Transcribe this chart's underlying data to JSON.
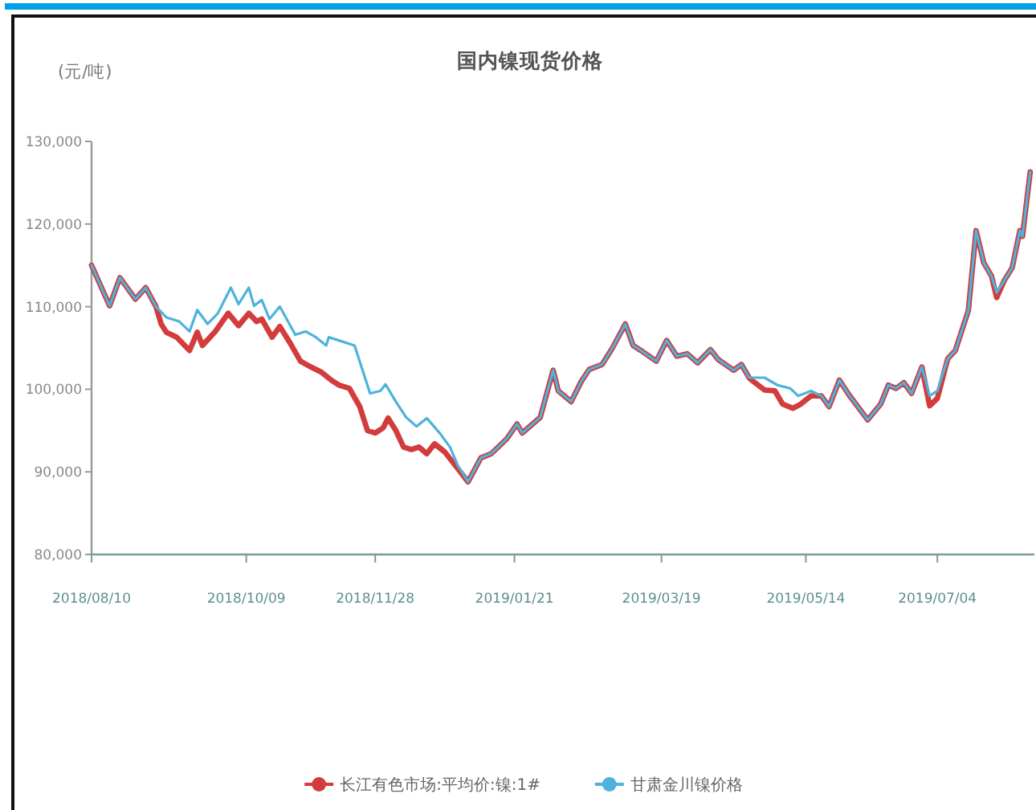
{
  "chart_data": {
    "type": "line",
    "title": "国内镍现货价格",
    "ylabel": "(元/吨)",
    "xlim": [
      "2018-08-10",
      "2019-08-10"
    ],
    "xticks": [
      {
        "value": "2018-08-10",
        "label": "2018/08/10"
      },
      {
        "value": "2018-10-09",
        "label": "2018/10/09"
      },
      {
        "value": "2018-11-28",
        "label": "2018/11/28"
      },
      {
        "value": "2019-01-21",
        "label": "2019/01/21"
      },
      {
        "value": "2019-03-19",
        "label": "2019/03/19"
      },
      {
        "value": "2019-05-14",
        "label": "2019/05/14"
      },
      {
        "value": "2019-07-04",
        "label": "2019/07/04"
      }
    ],
    "ylim": [
      80000,
      130000
    ],
    "yticks": [
      {
        "value": 80000,
        "label": "80,000"
      },
      {
        "value": 90000,
        "label": "90,000"
      },
      {
        "value": 100000,
        "label": "100,000"
      },
      {
        "value": 110000,
        "label": "110,000"
      },
      {
        "value": 120000,
        "label": "120,000"
      },
      {
        "value": 130000,
        "label": "130,000"
      }
    ],
    "legend": "bottom",
    "series": [
      {
        "name": "长江有色市场:平均价:镍:1#",
        "color": "#d23c3c",
        "x": [
          "2018-08-10",
          "2018-08-17",
          "2018-08-21",
          "2018-08-27",
          "2018-08-31",
          "2018-09-04",
          "2018-09-06",
          "2018-09-08",
          "2018-09-12",
          "2018-09-17",
          "2018-09-20",
          "2018-09-22",
          "2018-09-27",
          "2018-10-02",
          "2018-10-06",
          "2018-10-10",
          "2018-10-13",
          "2018-10-15",
          "2018-10-19",
          "2018-10-22",
          "2018-10-26",
          "2018-10-30",
          "2018-11-03",
          "2018-11-07",
          "2018-11-11",
          "2018-11-14",
          "2018-11-18",
          "2018-11-22",
          "2018-11-25",
          "2018-11-28",
          "2018-12-01",
          "2018-12-03",
          "2018-12-06",
          "2018-12-09",
          "2018-12-12",
          "2018-12-15",
          "2018-12-18",
          "2018-12-21",
          "2018-12-25",
          "2018-12-29",
          "2019-01-03",
          "2019-01-08",
          "2019-01-12",
          "2019-01-18",
          "2019-01-22",
          "2019-01-24",
          "2019-01-31",
          "2019-02-05",
          "2019-02-07",
          "2019-02-12",
          "2019-02-16",
          "2019-02-19",
          "2019-02-24",
          "2019-02-28",
          "2019-03-05",
          "2019-03-08",
          "2019-03-11",
          "2019-03-17",
          "2019-03-21",
          "2019-03-25",
          "2019-03-29",
          "2019-04-02",
          "2019-04-07",
          "2019-04-10",
          "2019-04-16",
          "2019-04-19",
          "2019-04-22",
          "2019-04-23",
          "2019-04-28",
          "2019-05-02",
          "2019-05-05",
          "2019-05-09",
          "2019-05-12",
          "2019-05-16",
          "2019-05-20",
          "2019-05-23",
          "2019-05-27",
          "2019-05-31",
          "2019-06-07",
          "2019-06-12",
          "2019-06-15",
          "2019-06-18",
          "2019-06-21",
          "2019-06-24",
          "2019-06-28",
          "2019-07-01",
          "2019-07-04",
          "2019-07-08",
          "2019-07-11",
          "2019-07-14",
          "2019-07-16",
          "2019-07-19",
          "2019-07-22",
          "2019-07-25",
          "2019-07-27",
          "2019-07-30",
          "2019-08-02",
          "2019-08-05",
          "2019-08-06",
          "2019-08-09"
        ],
        "values": [
          115000,
          110100,
          113500,
          110900,
          112300,
          110000,
          107900,
          106900,
          106300,
          104700,
          106900,
          105300,
          107000,
          109200,
          107700,
          109200,
          108200,
          108500,
          106300,
          107600,
          105600,
          103400,
          102700,
          102100,
          101100,
          100500,
          100100,
          97900,
          95000,
          94700,
          95300,
          96500,
          95000,
          93000,
          92700,
          93000,
          92200,
          93400,
          92400,
          90800,
          88800,
          91700,
          92200,
          94000,
          95800,
          94700,
          96600,
          102300,
          99800,
          98500,
          101000,
          102400,
          103000,
          105000,
          107900,
          105300,
          104700,
          103400,
          105900,
          104000,
          104300,
          103200,
          104800,
          103600,
          102300,
          103000,
          101400,
          101100,
          99900,
          99800,
          98200,
          97700,
          98200,
          99200,
          99200,
          97900,
          101100,
          99200,
          96300,
          98200,
          100500,
          100100,
          100800,
          99500,
          102700,
          98000,
          98900,
          103700,
          104700,
          107600,
          109500,
          119200,
          115300,
          113700,
          111100,
          113200,
          114700,
          119200,
          118500,
          126300
        ]
      },
      {
        "name": "甘肃金川镍价格",
        "color": "#4db3dc",
        "x": [
          "2018-08-10",
          "2018-08-17",
          "2018-08-21",
          "2018-08-27",
          "2018-08-31",
          "2018-09-04",
          "2018-09-08",
          "2018-09-13",
          "2018-09-17",
          "2018-09-20",
          "2018-09-24",
          "2018-09-28",
          "2018-10-03",
          "2018-10-06",
          "2018-10-10",
          "2018-10-12",
          "2018-10-15",
          "2018-10-18",
          "2018-10-22",
          "2018-10-25",
          "2018-10-28",
          "2018-11-01",
          "2018-11-05",
          "2018-11-09",
          "2018-11-10",
          "2018-11-20",
          "2018-11-23",
          "2018-11-26",
          "2018-11-30",
          "2018-12-02",
          "2018-12-06",
          "2018-12-10",
          "2018-12-14",
          "2018-12-18",
          "2018-12-23",
          "2018-12-27",
          "2018-12-30",
          "2019-01-03",
          "2019-01-08",
          "2019-01-12",
          "2019-01-18",
          "2019-01-22",
          "2019-01-24",
          "2019-01-31",
          "2019-02-05",
          "2019-02-07",
          "2019-02-12",
          "2019-02-16",
          "2019-02-19",
          "2019-02-24",
          "2019-02-28",
          "2019-03-05",
          "2019-03-08",
          "2019-03-11",
          "2019-03-17",
          "2019-03-21",
          "2019-03-25",
          "2019-03-29",
          "2019-04-02",
          "2019-04-07",
          "2019-04-10",
          "2019-04-16",
          "2019-04-19",
          "2019-04-22",
          "2019-04-28",
          "2019-05-03",
          "2019-05-08",
          "2019-05-11",
          "2019-05-16",
          "2019-05-20",
          "2019-05-23",
          "2019-05-27",
          "2019-05-31",
          "2019-06-07",
          "2019-06-12",
          "2019-06-15",
          "2019-06-18",
          "2019-06-21",
          "2019-06-24",
          "2019-06-28",
          "2019-07-01",
          "2019-07-04",
          "2019-07-08",
          "2019-07-11",
          "2019-07-14",
          "2019-07-16",
          "2019-07-19",
          "2019-07-22",
          "2019-07-25",
          "2019-07-27",
          "2019-07-30",
          "2019-08-02",
          "2019-08-05",
          "2019-08-06",
          "2019-08-09"
        ],
        "values": [
          115000,
          110100,
          113500,
          110900,
          112300,
          110000,
          108700,
          108200,
          107000,
          109600,
          107900,
          109200,
          112300,
          110300,
          112300,
          110100,
          110800,
          108500,
          110000,
          108300,
          106600,
          107000,
          106300,
          105300,
          106300,
          105300,
          102400,
          99500,
          99800,
          100600,
          98500,
          96600,
          95500,
          96500,
          94700,
          93000,
          90800,
          88800,
          91700,
          92200,
          94000,
          95800,
          94700,
          96600,
          102300,
          99800,
          98500,
          101000,
          102400,
          103000,
          105000,
          107900,
          105300,
          104700,
          103400,
          105900,
          104000,
          104300,
          103200,
          104800,
          103600,
          102300,
          103000,
          101400,
          101400,
          100500,
          100100,
          99200,
          99800,
          99200,
          97900,
          101100,
          99200,
          96300,
          98200,
          100500,
          100100,
          100800,
          99500,
          102700,
          99200,
          99800,
          103700,
          104700,
          107600,
          109500,
          119200,
          115300,
          113700,
          111700,
          113200,
          114700,
          119200,
          118500,
          126300
        ]
      }
    ]
  }
}
